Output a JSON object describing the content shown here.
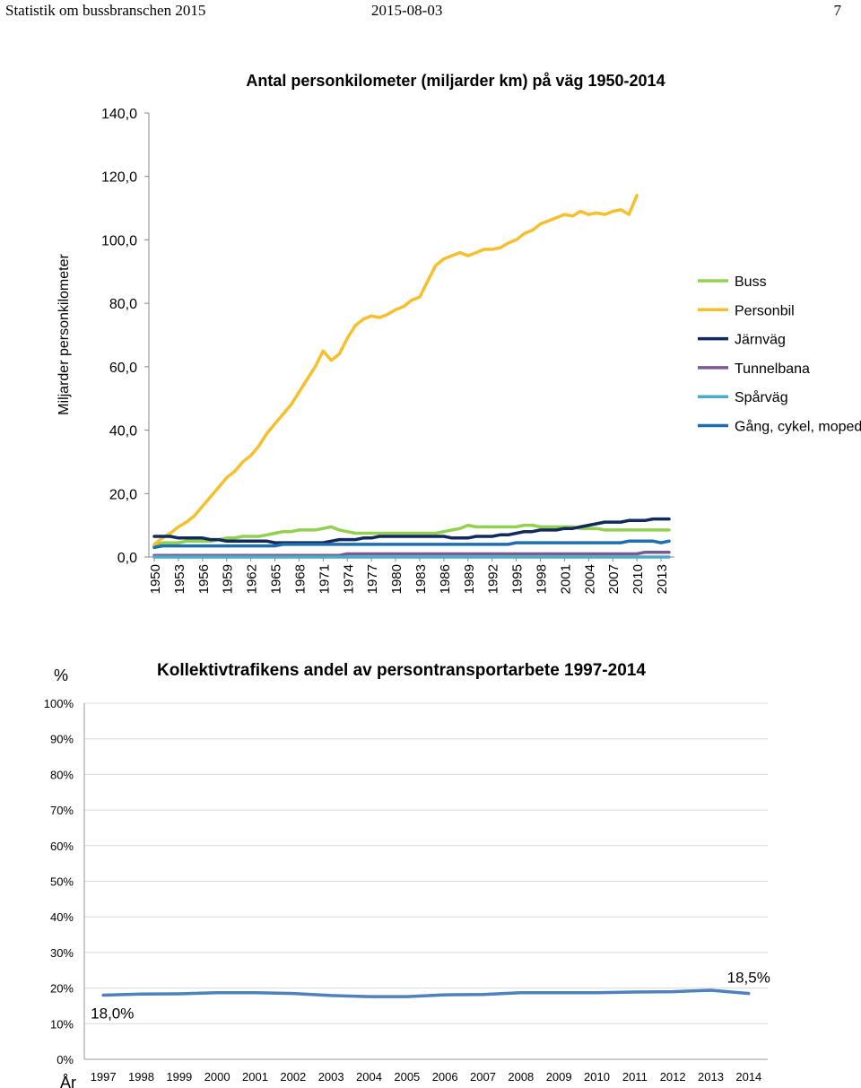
{
  "header": {
    "left": "Statistik om bussbranschen 2015",
    "center": "2015-08-03",
    "right": "7"
  },
  "chart_data": [
    {
      "type": "line",
      "title": "Antal personkilometer (miljarder km) på väg 1950-2014",
      "ylabel": "Miljarder personkilometer",
      "xlabel": "",
      "ylim": [
        0,
        140
      ],
      "y_ticks": [
        "0,0",
        "20,0",
        "40,0",
        "60,0",
        "80,0",
        "100,0",
        "120,0",
        "140,0"
      ],
      "x_start": 1950,
      "x_end": 2014,
      "x_tick_labels": [
        "1950",
        "1953",
        "1956",
        "1959",
        "1962",
        "1965",
        "1968",
        "1971",
        "1974",
        "1977",
        "1980",
        "1983",
        "1986",
        "1989",
        "1992",
        "1995",
        "1998",
        "2001",
        "2004",
        "2007",
        "2010",
        "2013"
      ],
      "grid": false,
      "legend": "right",
      "series": [
        {
          "name": "Buss",
          "color": "#92d050",
          "values": [
            3.5,
            4.5,
            4.5,
            4.5,
            5,
            5,
            5,
            5,
            5.5,
            6,
            6,
            6.5,
            6.5,
            6.5,
            7,
            7.5,
            8,
            8,
            8.5,
            8.5,
            8.5,
            9,
            9.5,
            8.5,
            8,
            7.5,
            7.5,
            7.5,
            7.5,
            7.5,
            7.5,
            7.5,
            7.5,
            7.5,
            7.5,
            7.5,
            8,
            8.5,
            9,
            10,
            9.5,
            9.5,
            9.5,
            9.5,
            9.5,
            9.5,
            10,
            10,
            9.5,
            9.5,
            9.5,
            9.5,
            9.5,
            9,
            9,
            9,
            8.5,
            8.5,
            8.5,
            8.5,
            8.5,
            8.5,
            8.5,
            8.5,
            8.5
          ]
        },
        {
          "name": "Personbil",
          "color": "#f5c02c",
          "values": [
            4,
            6,
            7.5,
            9.5,
            11,
            13,
            16,
            19,
            22,
            25,
            27,
            30,
            32,
            35,
            39,
            42,
            45,
            48,
            52,
            56,
            60,
            65,
            62,
            64,
            69,
            73,
            75,
            76,
            75.5,
            76.5,
            78,
            79,
            81,
            82,
            87,
            92,
            94,
            95,
            96,
            95,
            96,
            97,
            97,
            97.5,
            99,
            100,
            102,
            103,
            105,
            106,
            107,
            108,
            107.5,
            109,
            108,
            108.5,
            108,
            109,
            109.5,
            108,
            114,
            null,
            null,
            null,
            null
          ]
        },
        {
          "name": "Järnväg",
          "color": "#102a5e",
          "values": [
            6.5,
            6.5,
            6.5,
            6,
            6,
            6,
            6,
            5.5,
            5.5,
            5,
            5,
            5,
            5,
            5,
            5,
            4.5,
            4.5,
            4.5,
            4.5,
            4.5,
            4.5,
            4.5,
            5,
            5.5,
            5.5,
            5.5,
            6,
            6,
            6.5,
            6.5,
            6.5,
            6.5,
            6.5,
            6.5,
            6.5,
            6.5,
            6.5,
            6,
            6,
            6,
            6.5,
            6.5,
            6.5,
            7,
            7,
            7.5,
            8,
            8,
            8.5,
            8.5,
            8.5,
            9,
            9,
            9.5,
            10,
            10.5,
            11,
            11,
            11,
            11.5,
            11.5,
            11.5,
            12,
            12,
            12
          ]
        },
        {
          "name": "Tunnelbana",
          "color": "#7b5a92",
          "values": [
            0.5,
            0.5,
            0.5,
            0.5,
            0.5,
            0.5,
            0.5,
            0.5,
            0.5,
            0.5,
            0.5,
            0.5,
            0.5,
            0.5,
            0.5,
            0.5,
            0.5,
            0.5,
            0.5,
            0.5,
            0.5,
            0.5,
            0.5,
            0.5,
            1,
            1,
            1,
            1,
            1,
            1,
            1,
            1,
            1,
            1,
            1,
            1,
            1,
            1,
            1,
            1,
            1,
            1,
            1,
            1,
            1,
            1,
            1,
            1,
            1,
            1,
            1,
            1,
            1,
            1,
            1,
            1,
            1,
            1,
            1,
            1,
            1,
            1.5,
            1.5,
            1.5,
            1.5
          ]
        },
        {
          "name": "Spårväg",
          "color": "#4bacc6",
          "values": [
            0,
            0,
            0,
            0,
            0,
            0,
            0,
            0,
            0,
            0,
            0,
            0,
            0,
            0,
            0,
            0,
            0,
            0,
            0,
            0,
            0,
            0,
            0,
            0,
            0,
            0,
            0,
            0,
            0,
            0,
            0,
            0,
            0,
            0,
            0,
            0,
            0,
            0,
            0,
            0,
            0,
            0,
            0,
            0,
            0,
            0,
            0,
            0,
            0,
            0,
            0,
            0,
            0,
            0,
            0,
            0,
            0,
            0,
            0,
            0,
            0,
            0,
            0,
            0,
            0
          ]
        },
        {
          "name": "Gång, cykel, moped",
          "color": "#1f6fb0",
          "values": [
            3,
            3.5,
            3.5,
            3.5,
            3.5,
            3.5,
            3.5,
            3.5,
            3.5,
            3.5,
            3.5,
            3.5,
            3.5,
            3.5,
            3.5,
            3.5,
            4,
            4,
            4,
            4,
            4,
            4,
            4,
            4,
            4,
            4,
            4,
            4,
            4,
            4,
            4,
            4,
            4,
            4,
            4,
            4,
            4,
            4,
            4,
            4,
            4,
            4,
            4,
            4,
            4,
            4.5,
            4.5,
            4.5,
            4.5,
            4.5,
            4.5,
            4.5,
            4.5,
            4.5,
            4.5,
            4.5,
            4.5,
            4.5,
            4.5,
            5,
            5,
            5,
            5,
            4.5,
            5
          ]
        }
      ]
    },
    {
      "type": "line",
      "title": "Kollektivtrafikens andel av persontransportarbete 1997-2014",
      "ylabel": "%",
      "xlabel": "År",
      "ylim": [
        0,
        100
      ],
      "y_ticks": [
        "0%",
        "10%",
        "20%",
        "30%",
        "40%",
        "50%",
        "60%",
        "70%",
        "80%",
        "90%",
        "100%"
      ],
      "grid": true,
      "categories": [
        "1997",
        "1998",
        "1999",
        "2000",
        "2001",
        "2002",
        "2003",
        "2004",
        "2005",
        "2006",
        "2007",
        "2008",
        "2009",
        "2010",
        "2011",
        "2012",
        "2013",
        "2014"
      ],
      "series": [
        {
          "name": "Kollektivtrafikens andel",
          "color": "#4f81bd",
          "values": [
            18.0,
            18.3,
            18.4,
            18.7,
            18.7,
            18.5,
            17.9,
            17.6,
            17.6,
            18.1,
            18.2,
            18.7,
            18.7,
            18.7,
            18.9,
            19.0,
            19.4,
            18.5
          ]
        }
      ],
      "annotations": [
        {
          "text": "18,0%",
          "category": "1997"
        },
        {
          "text": "18,5%",
          "category": "2014"
        }
      ]
    }
  ]
}
